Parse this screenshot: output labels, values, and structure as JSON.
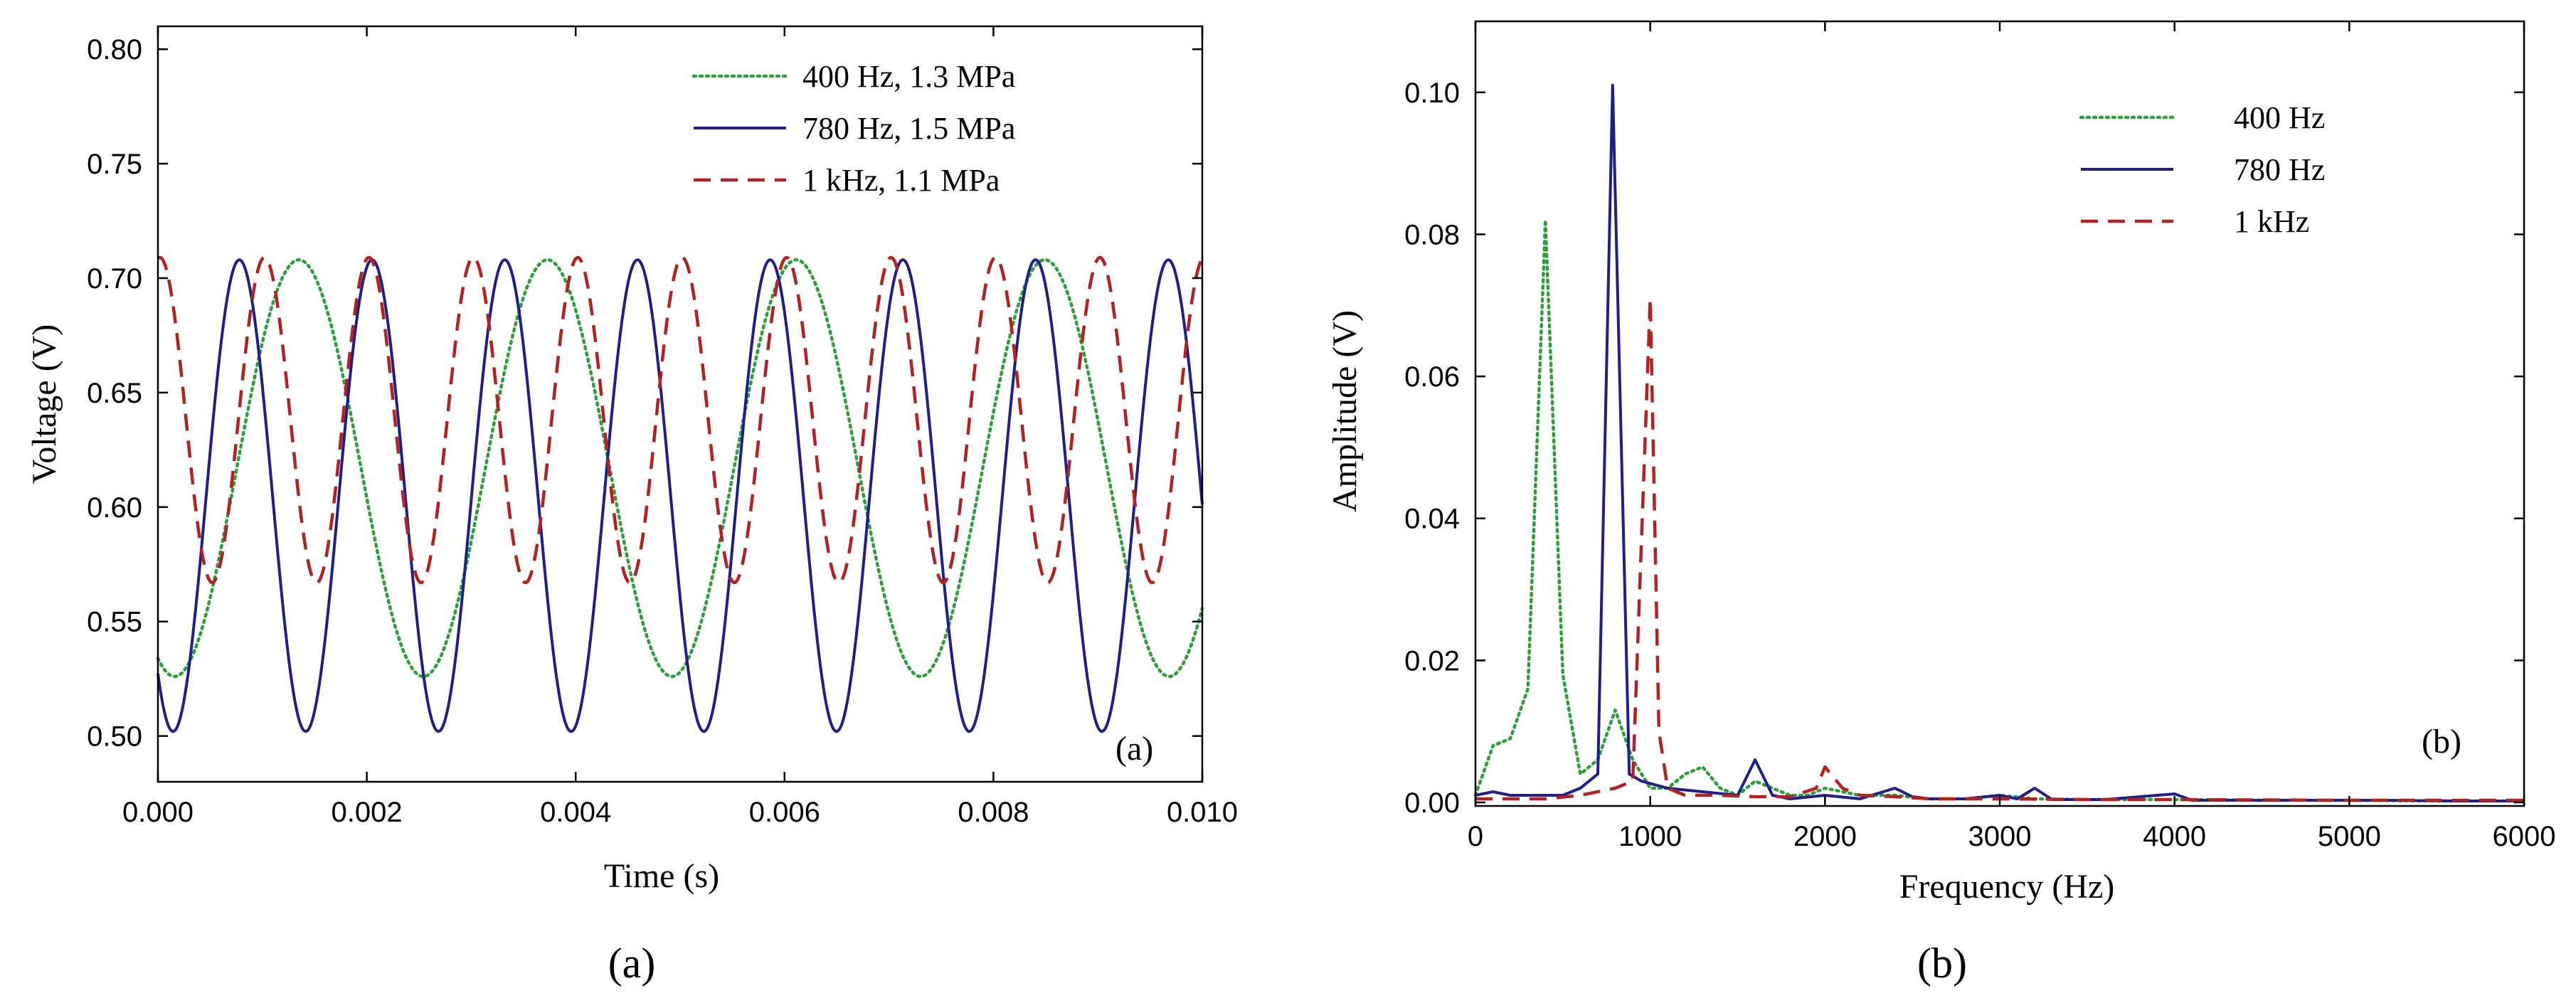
{
  "chart_data": [
    {
      "type": "line",
      "panel_label": "(a)",
      "caption": "(a)",
      "xlabel": "Time (s)",
      "ylabel": "Voltage (V)",
      "xlim": [
        0,
        0.01
      ],
      "ylim": [
        0.48,
        0.81
      ],
      "x_ticks": [
        0,
        0.002,
        0.004,
        0.006,
        0.008,
        0.01
      ],
      "x_tick_labels": [
        "0.000",
        "0.002",
        "0.004",
        "0.006",
        "0.008",
        "0.010"
      ],
      "y_ticks": [
        0.5,
        0.55,
        0.6,
        0.65,
        0.7,
        0.75,
        0.8
      ],
      "y_tick_labels": [
        "0.50",
        "0.55",
        "0.60",
        "0.65",
        "0.70",
        "0.75",
        "0.80"
      ],
      "legend_position": "top-right",
      "series": [
        {
          "name": "400 Hz, 1.3 MPa",
          "style": "dotted",
          "color": "#2e9e3a",
          "kind": "wave",
          "freq": 420,
          "center": 0.617,
          "amp": 0.091,
          "peak_time": 0.00135
        },
        {
          "name": "780 Hz, 1.5 MPa",
          "style": "solid",
          "color": "#1f1f8c",
          "kind": "wave",
          "freq": 787,
          "center": 0.605,
          "amp": 0.103,
          "peak_time": 0.00078
        },
        {
          "name": "1 kHz, 1.1 MPa",
          "style": "dashed",
          "color": "#b22222",
          "kind": "wave",
          "freq": 1000,
          "center": 0.638,
          "amp": 0.071,
          "peak_time": 2e-05
        }
      ]
    },
    {
      "type": "line",
      "panel_label": "(b)",
      "caption": "(b)",
      "xlabel": "Frequency (Hz)",
      "ylabel": "Amplitude (V)",
      "xlim": [
        0,
        6000
      ],
      "ylim": [
        -0.0005,
        0.11
      ],
      "x_ticks": [
        0,
        1000,
        2000,
        3000,
        4000,
        5000,
        6000
      ],
      "x_tick_labels": [
        "0",
        "1000",
        "2000",
        "3000",
        "4000",
        "5000",
        "6000"
      ],
      "y_ticks": [
        0,
        0.02,
        0.04,
        0.06,
        0.08,
        0.1
      ],
      "y_tick_labels": [
        "0.00",
        "0.02",
        "0.04",
        "0.06",
        "0.08",
        "0.10"
      ],
      "legend_position": "top-right",
      "series": [
        {
          "name": "400 Hz",
          "style": "dotted",
          "color": "#2e9e3a",
          "x": [
            0,
            100,
            200,
            300,
            400,
            500,
            600,
            700,
            800,
            900,
            1000,
            1100,
            1200,
            1300,
            1400,
            1500,
            1600,
            1700,
            1800,
            1900,
            2000,
            2200,
            2400,
            2600,
            2800,
            3000,
            3200,
            3500,
            4000,
            4500,
            5000,
            5500,
            6000
          ],
          "y": [
            0.001,
            0.008,
            0.009,
            0.016,
            0.082,
            0.018,
            0.004,
            0.006,
            0.013,
            0.006,
            0.002,
            0.002,
            0.004,
            0.005,
            0.002,
            0.001,
            0.003,
            0.002,
            0.001,
            0.001,
            0.002,
            0.001,
            0.001,
            0.0005,
            0.0005,
            0.001,
            0.0005,
            0.0004,
            0.0004,
            0.0003,
            0.0003,
            0.0002,
            0.0002
          ]
        },
        {
          "name": "780 Hz",
          "style": "solid",
          "color": "#1f1f8c",
          "x": [
            0,
            100,
            200,
            300,
            400,
            500,
            600,
            700,
            785,
            880,
            950,
            1100,
            1300,
            1500,
            1600,
            1700,
            1800,
            2000,
            2200,
            2400,
            2500,
            2600,
            2800,
            3000,
            3100,
            3200,
            3300,
            3600,
            4000,
            4100,
            4400,
            4800,
            5200,
            5600,
            6000
          ],
          "y": [
            0.001,
            0.0015,
            0.001,
            0.001,
            0.001,
            0.001,
            0.002,
            0.004,
            0.101,
            0.004,
            0.003,
            0.002,
            0.0015,
            0.001,
            0.006,
            0.001,
            0.0005,
            0.001,
            0.0005,
            0.002,
            0.0008,
            0.0005,
            0.0005,
            0.001,
            0.0005,
            0.002,
            0.0004,
            0.0004,
            0.0012,
            0.0003,
            0.0003,
            0.0003,
            0.0003,
            0.0002,
            0.0002
          ]
        },
        {
          "name": "1 kHz",
          "style": "dashed",
          "color": "#b22222",
          "x": [
            0,
            200,
            400,
            600,
            800,
            900,
            1000,
            1050,
            1100,
            1200,
            1400,
            1600,
            1800,
            1950,
            2000,
            2100,
            2200,
            2400,
            2600,
            3000,
            3500,
            4000,
            5000,
            6000
          ],
          "y": [
            0.0005,
            0.0005,
            0.0005,
            0.001,
            0.002,
            0.003,
            0.071,
            0.01,
            0.002,
            0.001,
            0.001,
            0.0008,
            0.0008,
            0.002,
            0.005,
            0.002,
            0.001,
            0.0008,
            0.0005,
            0.0005,
            0.0004,
            0.0004,
            0.0003,
            0.0003
          ]
        }
      ]
    }
  ]
}
